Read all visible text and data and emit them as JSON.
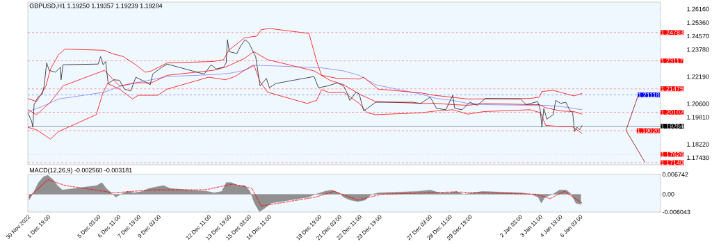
{
  "chart_data": [
    {
      "type": "line",
      "title": "GBPUSD,H1  1.19250 1.19357 1.19239 1.19284",
      "xlim": [
        "2022-11-30T11:00",
        "2023-01-11T11:00"
      ],
      "ylim": [
        1.1702,
        1.2657
      ],
      "tick_labels": "y",
      "yticks": [
        {
          "value": 1.2616,
          "label": "1.26160"
        },
        {
          "value": 1.2536,
          "label": "1.25360"
        },
        {
          "value": 1.2457,
          "label": "1.24570"
        },
        {
          "value": 1.2378,
          "label": "1.23780"
        },
        {
          "value": 1.2219,
          "label": "1.22190"
        },
        {
          "value": 1.206,
          "label": "1.20600"
        },
        {
          "value": 1.1981,
          "label": "1.19810"
        },
        {
          "value": 1.1822,
          "label": "1.18220"
        },
        {
          "value": 1.1743,
          "label": "1.17430"
        }
      ],
      "ref_lines": [
        {
          "axis": "y",
          "value": 1.24783,
          "label": "1.24783",
          "color": "#ff0000",
          "line_style": "dashed"
        },
        {
          "axis": "y",
          "value": 1.23117,
          "label": "1.23117",
          "color": "#ff0000",
          "line_style": "dashed"
        },
        {
          "axis": "y",
          "value": 1.21475,
          "label": "1.21475",
          "color": "#ff0000",
          "line_style": "dashed"
        },
        {
          "axis": "y",
          "value": 1.21118,
          "label": "1.21118",
          "color": "#0000ff",
          "line_style": "dashed"
        },
        {
          "axis": "y",
          "value": 1.20102,
          "label": "1.20102",
          "color": "#ff0000",
          "line_style": "dashed"
        },
        {
          "axis": "y",
          "value": 1.19284,
          "label": "1.19284",
          "color": "#000000",
          "line_style": "solid"
        },
        {
          "axis": "y",
          "value": 1.1902,
          "label": "1.19020",
          "color": "#ff0000",
          "line_style": "dashed"
        },
        {
          "axis": "y",
          "value": 1.17626,
          "label": "1.17626",
          "color": "#ff0000",
          "line_style": "dotted"
        },
        {
          "axis": "y",
          "value": 1.1714,
          "label": "1.17140",
          "color": "#ff0000",
          "line_style": "dashed"
        }
      ],
      "series": [
        {
          "color": "#8080ff",
          "x": [
            "2022-11-30T11:00",
            "2022-12-01T10:00",
            "2022-12-02T12:00",
            "2022-12-05T13:00",
            "2022-12-06T13:00",
            "2022-12-07T15:00",
            "2022-12-08T16:00",
            "2022-12-09T17:00",
            "2022-12-12T18:00",
            "2022-12-13T19:00",
            "2022-12-14T20:00",
            "2022-12-15T14:00",
            "2022-12-16T22:00",
            "2022-12-19T23:00",
            "2022-12-21T10:00",
            "2022-12-22T11:00",
            "2022-12-23T13:00",
            "2022-12-26T13:00",
            "2022-12-27T14:00",
            "2022-12-28T16:00",
            "2022-12-29T16:00",
            "2022-12-30T17:00",
            "2023-01-02T19:00",
            "2023-01-03T20:00",
            "2023-01-04T20:00",
            "2023-01-06T06:00"
          ],
          "values": [
            1.2014,
            1.2044,
            1.2088,
            1.2128,
            1.2161,
            1.2183,
            1.2201,
            1.222,
            1.2231,
            1.2238,
            1.2256,
            1.2286,
            1.2282,
            1.2271,
            1.2253,
            1.2227,
            1.2172,
            1.2117,
            1.2091,
            1.208,
            1.2062,
            1.2055,
            1.2051,
            1.2051,
            1.2044,
            1.2025
          ]
        },
        {
          "color": "#ff0000",
          "x": [
            "2022-11-30T11:00",
            "2022-12-01T01:00",
            "2022-12-01T16:00",
            "2022-12-01T23:00",
            "2022-12-02T12:00",
            "2022-12-02T22:00",
            "2022-12-05T13:00",
            "2022-12-06T01:00",
            "2022-12-06T19:00",
            "2022-12-07T15:00",
            "2022-12-08T06:00",
            "2022-12-08T16:00",
            "2022-12-09T17:00",
            "2022-12-12T18:00",
            "2022-12-13T11:00",
            "2022-12-13T19:00",
            "2022-12-14T20:00",
            "2022-12-15T16:00",
            "2022-12-15T23:00",
            "2022-12-16T12:00",
            "2022-12-19T03:00",
            "2022-12-19T15:00",
            "2022-12-19T23:00",
            "2022-12-21T00:00",
            "2022-12-21T10:00",
            "2022-12-22T11:00",
            "2022-12-22T18:00",
            "2022-12-23T17:00",
            "2022-12-26T13:00",
            "2022-12-27T10:00",
            "2022-12-29T16:00",
            "2023-01-02T19:00",
            "2023-01-03T10:00",
            "2023-01-03T14:00",
            "2023-01-04T08:00",
            "2023-01-05T17:00",
            "2023-01-06T06:00"
          ],
          "values": [
            1.2091,
            1.2073,
            1.2165,
            1.2264,
            1.2348,
            1.2381,
            1.2374,
            1.2355,
            1.2337,
            1.2289,
            1.2245,
            1.2253,
            1.23,
            1.2308,
            1.2319,
            1.2374,
            1.2447,
            1.2458,
            1.2495,
            1.2502,
            1.2473,
            1.2311,
            1.2227,
            1.2209,
            1.2209,
            1.2205,
            1.2216,
            1.2146,
            1.2124,
            1.211,
            1.2088,
            1.2091,
            1.2099,
            1.2132,
            1.2139,
            1.2106,
            1.2121
          ]
        },
        {
          "color": "#ff0000",
          "x": [
            "2022-11-30T11:00",
            "2022-12-01T01:00",
            "2022-12-01T23:00",
            "2022-12-02T19:00",
            "2022-12-05T13:00",
            "2022-12-06T13:00",
            "2022-12-07T15:00",
            "2022-12-08T16:00",
            "2022-12-09T17:00",
            "2022-12-12T18:00",
            "2022-12-13T14:00",
            "2022-12-14T20:00",
            "2022-12-15T11:00",
            "2022-12-16T09:00",
            "2022-12-19T11:00",
            "2022-12-20T12:00",
            "2022-12-21T10:00",
            "2022-12-22T11:00",
            "2022-12-23T13:00",
            "2022-12-26T13:00",
            "2022-12-27T14:00",
            "2022-12-28T16:00",
            "2022-12-29T16:00",
            "2022-12-30T17:00",
            "2023-01-02T19:00",
            "2023-01-03T10:00",
            "2023-01-03T20:00",
            "2023-01-04T20:00",
            "2023-01-05T17:00",
            "2023-01-06T06:00"
          ],
          "values": [
            1.2025,
            1.1996,
            1.2069,
            1.2165,
            1.2256,
            1.2165,
            1.2183,
            1.2183,
            1.2227,
            1.2256,
            1.2275,
            1.2326,
            1.2366,
            1.2319,
            1.2253,
            1.2198,
            1.2172,
            1.2117,
            1.2073,
            1.2062,
            1.2062,
            1.2055,
            1.2051,
            1.2062,
            1.2055,
            1.2055,
            1.2037,
            1.2018,
            1.2014,
            1.1999
          ]
        },
        {
          "color": "#ff0000",
          "x": [
            "2022-11-30T11:00",
            "2022-12-01T01:00",
            "2022-12-01T23:00",
            "2022-12-02T12:00",
            "2022-12-05T00:00",
            "2022-12-05T10:00",
            "2022-12-05T18:00",
            "2022-12-06T13:00",
            "2022-12-07T10:00",
            "2022-12-07T19:00",
            "2022-12-09T02:00",
            "2022-12-09T17:00",
            "2022-12-12T11:00",
            "2022-12-13T14:00",
            "2022-12-14T05:00",
            "2022-12-14T20:00",
            "2022-12-15T11:00",
            "2022-12-15T21:00",
            "2022-12-16T09:00",
            "2022-12-19T00:00",
            "2022-12-19T15:00",
            "2022-12-19T23:00",
            "2022-12-20T12:00",
            "2022-12-21T10:00",
            "2022-12-22T11:00",
            "2022-12-23T00:00",
            "2022-12-23T13:00",
            "2022-12-26T13:00",
            "2022-12-27T14:00",
            "2022-12-28T16:00",
            "2022-12-29T16:00",
            "2022-12-30T17:00",
            "2023-01-02T19:00",
            "2023-01-03T12:00",
            "2023-01-03T20:00",
            "2023-01-04T20:00",
            "2023-01-05T14:00",
            "2023-01-05T22:00",
            "2023-01-06T06:00"
          ],
          "values": [
            1.1922,
            1.1907,
            1.1853,
            1.1897,
            1.1996,
            1.2117,
            1.2179,
            1.2146,
            1.2088,
            1.211,
            1.211,
            1.2146,
            1.2216,
            1.2201,
            1.222,
            1.2256,
            1.2289,
            1.219,
            1.2128,
            1.2062,
            1.208,
            1.2143,
            1.2124,
            1.2128,
            1.2062,
            1.2007,
            1.1996,
            1.2007,
            1.2018,
            1.2025,
            1.1999,
            1.2014,
            1.2025,
            1.2007,
            1.1933,
            1.1926,
            1.1926,
            1.1907,
            1.1885
          ]
        },
        {
          "color": "#202020",
          "x": [
            "2022-11-30T11:00",
            "2022-11-30T17:00",
            "2022-11-30T19:00",
            "2022-11-30T21:00",
            "2022-12-01T03:00",
            "2022-12-01T10:00",
            "2022-12-01T13:00",
            "2022-12-01T17:00",
            "2022-12-01T21:00",
            "2022-12-02T07:00",
            "2022-12-02T15:00",
            "2022-12-02T16:00",
            "2022-12-02T19:00",
            "2022-12-05T03:00",
            "2022-12-05T07:00",
            "2022-12-05T11:00",
            "2022-12-05T15:00",
            "2022-12-05T19:00",
            "2022-12-06T04:00",
            "2022-12-06T13:00",
            "2022-12-06T21:00",
            "2022-12-07T07:00",
            "2022-12-07T15:00",
            "2022-12-08T01:00",
            "2022-12-08T14:00",
            "2022-12-08T18:00",
            "2022-12-09T07:00",
            "2022-12-09T17:00",
            "2022-12-12T04:00",
            "2022-12-12T15:00",
            "2022-12-12T23:00",
            "2022-12-13T11:00",
            "2022-12-13T15:00",
            "2022-12-13T17:00",
            "2022-12-13T20:00",
            "2022-12-14T08:00",
            "2022-12-14T14:00",
            "2022-12-14T21:00",
            "2022-12-15T03:00",
            "2022-12-15T10:00",
            "2022-12-15T14:00",
            "2022-12-15T18:00",
            "2022-12-15T21:00",
            "2022-12-16T07:00",
            "2022-12-16T12:00",
            "2022-12-16T22:00",
            "2022-12-19T11:00",
            "2022-12-19T18:00",
            "2022-12-20T09:00",
            "2022-12-21T00:00",
            "2022-12-21T10:00",
            "2022-12-21T15:00",
            "2022-12-21T20:00",
            "2022-12-22T06:00",
            "2022-12-22T11:00",
            "2022-12-22T18:00",
            "2022-12-23T00:00",
            "2022-12-23T13:00",
            "2022-12-26T00:00",
            "2022-12-26T13:00",
            "2022-12-27T04:00",
            "2022-12-27T14:00",
            "2022-12-28T05:00",
            "2022-12-28T16:00",
            "2022-12-28T19:00",
            "2022-12-29T07:00",
            "2022-12-29T19:00",
            "2022-12-30T07:00",
            "2022-12-30T20:00",
            "2023-01-02T04:00",
            "2023-01-02T13:00",
            "2023-01-03T07:00",
            "2023-01-03T11:00",
            "2023-01-03T14:00",
            "2023-01-03T17:00",
            "2023-01-03T22:00",
            "2023-01-04T08:00",
            "2023-01-04T12:00",
            "2023-01-04T20:00",
            "2023-01-05T04:00",
            "2023-01-05T11:00",
            "2023-01-05T15:00",
            "2023-01-05T18:00",
            "2023-01-05T22:00",
            "2023-01-06T02:00",
            "2023-01-06T06:00"
          ],
          "values": [
            1.2007,
            1.1959,
            1.1922,
            1.2055,
            1.2099,
            1.2117,
            1.2165,
            1.23,
            1.2256,
            1.2245,
            1.2275,
            1.2201,
            1.2289,
            1.2293,
            1.2337,
            1.2289,
            1.2308,
            1.2179,
            1.2201,
            1.2198,
            1.2146,
            1.2135,
            1.2216,
            1.2198,
            1.2172,
            1.2234,
            1.2271,
            1.2293,
            1.2234,
            1.2289,
            1.2264,
            1.2275,
            1.23,
            1.2436,
            1.2366,
            1.2355,
            1.2399,
            1.2436,
            1.2418,
            1.2366,
            1.2337,
            1.2238,
            1.2165,
            1.2209,
            1.2154,
            1.2179,
            1.222,
            1.2154,
            1.2165,
            1.2183,
            1.2165,
            1.2128,
            1.208,
            1.2128,
            1.2117,
            1.2018,
            1.2033,
            1.2069,
            1.2069,
            1.2062,
            1.2099,
            1.2033,
            1.2025,
            1.211,
            1.2033,
            1.2025,
            1.2069,
            1.2051,
            1.2091,
            1.2088,
            1.2055,
            1.2073,
            1.2033,
            1.1922,
            1.2033,
            1.197,
            1.1996,
            1.208,
            1.2062,
            1.2069,
            1.2018,
            1.2007,
            1.1897,
            1.1922,
            1.1907,
            1.1933
          ]
        },
        {
          "color": "#8b0000",
          "x": [
            "2023-01-09T04:00",
            "2023-01-09T23:00"
          ],
          "values": [
            1.1904,
            1.2106
          ]
        },
        {
          "color": "#8b0000",
          "x": [
            "2023-01-09T04:00",
            "2023-01-10T10:00"
          ],
          "values": [
            1.1904,
            1.1717
          ]
        }
      ]
    },
    {
      "type": "area",
      "title": "MACD(12,26,9) -0.002560 -0.003181",
      "xlim": [
        "2022-11-30T11:00",
        "2023-01-11T11:00"
      ],
      "ylim": [
        -0.006043,
        0.006742
      ],
      "yticks": [
        0.006742,
        {
          "value": 0,
          "label": "0.00"
        },
        -0.006043
      ],
      "xticks": [
        {
          "value": "2022-11-30T11:00",
          "label": "30 Nov 2022"
        },
        {
          "value": "2022-12-01T19:00",
          "label": "1 Dec 19:00"
        },
        {
          "value": "2022-12-05T03:00",
          "label": "5 Dec 03:00"
        },
        {
          "value": "2022-12-06T11:00",
          "label": "6 Dec 11:00"
        },
        {
          "value": "2022-12-07T19:00",
          "label": "7 Dec 19:00"
        },
        {
          "value": "2022-12-09T03:00",
          "label": "9 Dec 03:00"
        },
        {
          "value": "2022-12-12T11:00",
          "label": "12 Dec 11:00"
        },
        {
          "value": "2022-12-13T19:00",
          "label": "13 Dec 19:00"
        },
        {
          "value": "2022-12-15T03:00",
          "label": "15 Dec 03:00"
        },
        {
          "value": "2022-12-16T11:00",
          "label": "16 Dec 11:00"
        },
        {
          "value": "2022-12-19T19:00",
          "label": "19 Dec 19:00"
        },
        {
          "value": "2022-12-21T03:00",
          "label": "21 Dec 03:00"
        },
        {
          "value": "2022-12-22T11:00",
          "label": "22 Dec 11:00"
        },
        {
          "value": "2022-12-23T19:00",
          "label": "23 Dec 19:00"
        },
        {
          "value": "2022-12-27T03:00",
          "label": "27 Dec 03:00"
        },
        {
          "value": "2022-12-28T11:00",
          "label": "28 Dec 11:00"
        },
        {
          "value": "2022-12-29T19:00",
          "label": "29 Dec 19:00"
        },
        {
          "value": "2023-01-02T03:00",
          "label": "2 Jan 03:00"
        },
        {
          "value": "2023-01-03T11:00",
          "label": "3 Jan 11:00"
        },
        {
          "value": "2023-01-04T19:00",
          "label": "4 Jan 19:00"
        },
        {
          "value": "2023-01-06T03:00",
          "label": "6 Jan 03:00"
        }
      ],
      "series": [
        {
          "color": "#909090",
          "x": [
            "2022-11-30T13:00",
            "2022-11-30T21:00",
            "2022-12-01T04:00",
            "2022-12-01T12:00",
            "2022-12-01T19:00",
            "2022-12-02T03:00",
            "2022-12-02T10:00",
            "2022-12-02T18:00",
            "2022-12-05T01:00",
            "2022-12-05T09:00",
            "2022-12-05T16:00",
            "2022-12-06T00:00",
            "2022-12-06T07:00",
            "2022-12-06T15:00",
            "2022-12-07T02:00",
            "2022-12-07T13:00",
            "2022-12-08T01:00",
            "2022-12-08T12:00",
            "2022-12-08T23:00",
            "2022-12-09T11:00",
            "2022-12-09T22:00",
            "2022-12-12T09:00",
            "2022-12-12T20:00",
            "2022-12-13T08:00",
            "2022-12-13T15:00",
            "2022-12-13T23:00",
            "2022-12-14T10:00",
            "2022-12-14T21:00",
            "2022-12-15T05:00",
            "2022-12-15T12:00",
            "2022-12-15T20:00",
            "2022-12-16T03:00",
            "2022-12-16T15:00",
            "2022-12-19T02:00",
            "2022-12-19T13:00",
            "2022-12-20T04:00",
            "2022-12-20T15:00",
            "2022-12-21T03:00",
            "2022-12-21T10:00",
            "2022-12-21T21:00",
            "2022-12-22T09:00",
            "2022-12-22T20:00",
            "2022-12-23T07:00",
            "2022-12-23T18:00",
            "2022-12-26T09:00",
            "2022-12-27T04:00",
            "2022-12-27T19:00",
            "2022-12-28T10:00",
            "2022-12-28T22:00",
            "2022-12-29T09:00",
            "2022-12-30T00:00",
            "2022-12-30T15:00",
            "2023-01-02T06:00",
            "2023-01-02T21:00",
            "2023-01-03T08:00",
            "2023-01-03T13:00",
            "2023-01-03T19:00",
            "2023-01-04T07:00",
            "2023-01-04T18:00",
            "2023-01-05T05:00",
            "2023-01-05T13:00",
            "2023-01-05T20:00",
            "2023-01-06T04:00"
          ],
          "values": [
            -0.002,
            0.001,
            0.004,
            0.006,
            0.0065,
            0.005,
            0.003,
            0.0015,
            0.003,
            0.004,
            0.002,
            0.0005,
            -0.001,
            0.0,
            0.001,
            0.0005,
            0.001,
            0.002,
            0.0025,
            0.003,
            0.002,
            0.001,
            0.0005,
            0.001,
            0.004,
            0.004,
            0.003,
            0.003,
            0.001,
            -0.003,
            -0.006,
            -0.005,
            -0.003,
            -0.001,
            0.0,
            0.001,
            0.0015,
            0.0005,
            -0.001,
            -0.002,
            -0.0025,
            -0.002,
            0.0,
            0.0005,
            0.001,
            0.0015,
            0.0005,
            0.0005,
            0.001,
            0.0,
            0.0005,
            0.001,
            0.0005,
            0.0,
            -0.001,
            -0.003,
            -0.001,
            0.0,
            0.0015,
            0.0015,
            0.0,
            -0.003,
            -0.0035
          ]
        },
        {
          "type": "line",
          "color": "#ff0000",
          "line_style": "dotted",
          "x": [
            "2022-11-30T13:00",
            "2022-12-01T19:00",
            "2022-12-02T22:00",
            "2022-12-06T04:00",
            "2022-12-08T16:00",
            "2022-12-12T05:00",
            "2022-12-14T02:00",
            "2022-12-15T08:00",
            "2022-12-15T23:00",
            "2022-12-19T13:00",
            "2022-12-20T19:00",
            "2022-12-22T09:00",
            "2022-12-23T22:00",
            "2022-12-28T18:00",
            "2023-01-03T05:00",
            "2023-01-04T03:00",
            "2023-01-05T02:00",
            "2023-01-06T06:00"
          ],
          "values": [
            -0.001,
            0.005,
            0.003,
            0.0005,
            0.0015,
            0.0015,
            0.0035,
            0.002,
            -0.004,
            -0.001,
            0.001,
            -0.002,
            0.0,
            0.0008,
            0.0,
            -0.0015,
            0.001,
            -0.003
          ]
        }
      ]
    }
  ]
}
